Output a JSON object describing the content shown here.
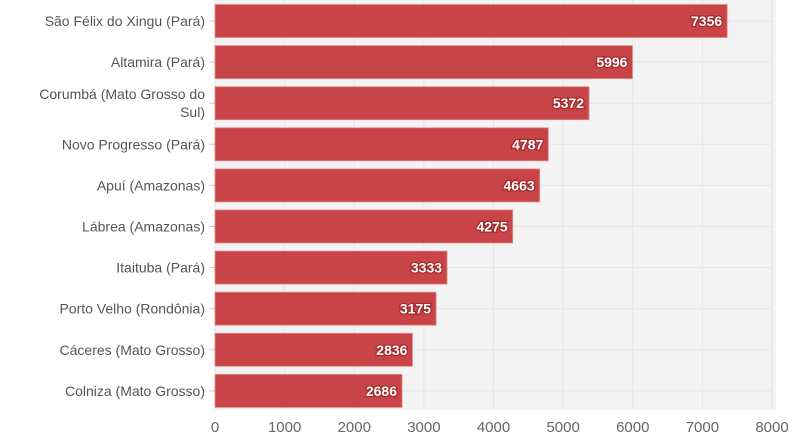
{
  "chart_data": {
    "type": "bar",
    "orientation": "horizontal",
    "title": "",
    "xlabel": "",
    "ylabel": "",
    "categories": [
      "São Félix do Xingu (Pará)",
      "Altamira (Pará)",
      "Corumbá (Mato Grosso do Sul)",
      "Novo Progresso (Pará)",
      "Apuí (Amazonas)",
      "Lábrea (Amazonas)",
      "Itaituba (Pará)",
      "Porto Velho (Rondônia)",
      "Cáceres (Mato Grosso)",
      "Colniza (Mato Grosso)"
    ],
    "category_lines": [
      [
        "São Félix do Xingu (Pará)"
      ],
      [
        "Altamira (Pará)"
      ],
      [
        "Corumbá (Mato Grosso do",
        "Sul)"
      ],
      [
        "Novo Progresso (Pará)"
      ],
      [
        "Apuí (Amazonas)"
      ],
      [
        "Lábrea (Amazonas)"
      ],
      [
        "Itaituba (Pará)"
      ],
      [
        "Porto Velho (Rondônia)"
      ],
      [
        "Cáceres (Mato Grosso)"
      ],
      [
        "Colniza (Mato Grosso)"
      ]
    ],
    "values": [
      7356,
      5996,
      5372,
      4787,
      4663,
      4275,
      3333,
      3175,
      2836,
      2686
    ],
    "xlim": [
      0,
      8000
    ],
    "xticks": [
      0,
      1000,
      2000,
      3000,
      4000,
      5000,
      6000,
      7000,
      8000
    ],
    "grid": true,
    "colors": {
      "bar": "#c94446",
      "plot_bg": "#f3f3f3",
      "grid": "#e6e6e6"
    }
  }
}
